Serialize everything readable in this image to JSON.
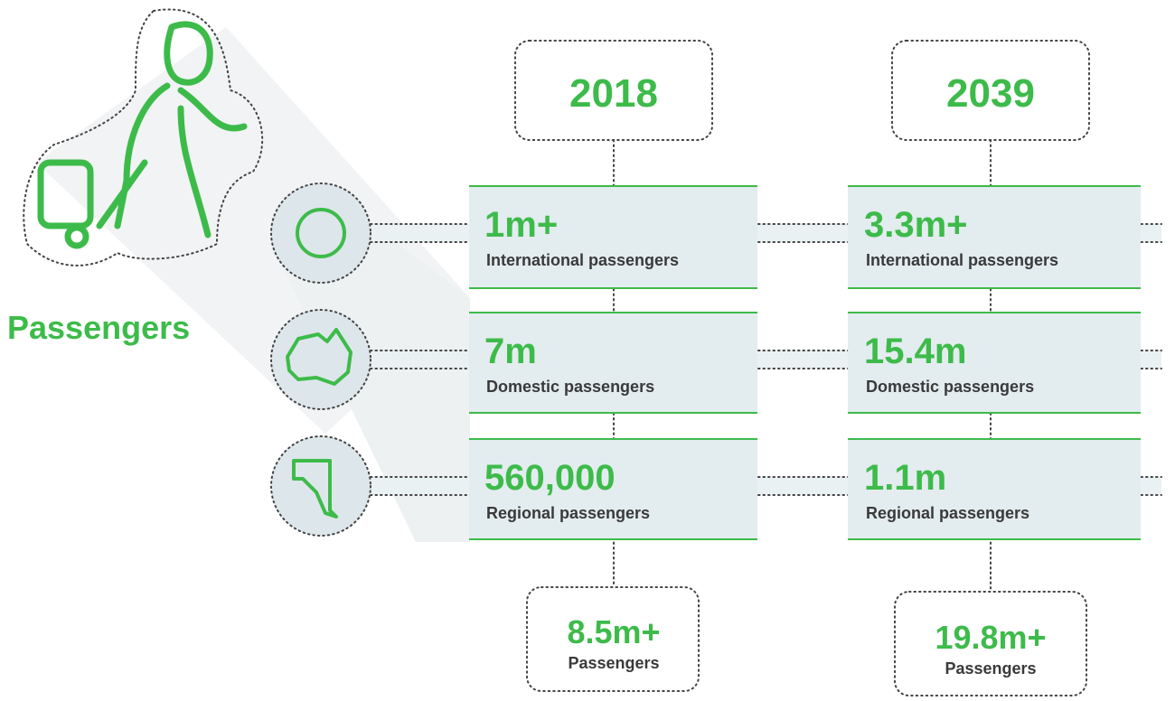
{
  "title": "Passengers",
  "columns": [
    {
      "year": "2018",
      "rows": [
        {
          "value": "1m+",
          "label": "International passengers"
        },
        {
          "value": "7m",
          "label": "Domestic passengers"
        },
        {
          "value": "560,000",
          "label": "Regional passengers"
        }
      ],
      "total": {
        "value": "8.5m+",
        "label": "Passengers"
      }
    },
    {
      "year": "2039",
      "rows": [
        {
          "value": "3.3m+",
          "label": "International passengers"
        },
        {
          "value": "15.4m",
          "label": "Domestic passengers"
        },
        {
          "value": "1.1m",
          "label": "Regional passengers"
        }
      ],
      "total": {
        "value": "19.8m+",
        "label": "Passengers"
      }
    }
  ]
}
